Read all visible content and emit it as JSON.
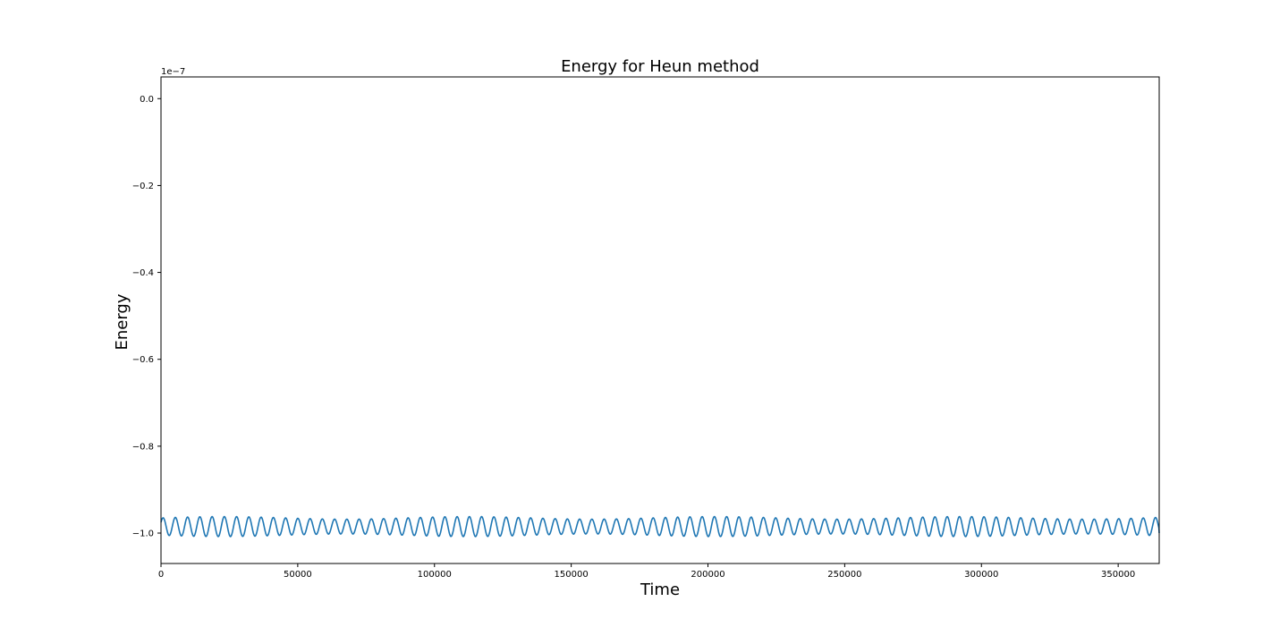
{
  "chart_data": {
    "type": "line",
    "title": "Energy for Heun method",
    "xlabel": "Time",
    "ylabel": "Energy",
    "y_offset_text": "1e−7",
    "y_scale_factor": 1e-07,
    "xlim": [
      0,
      365000
    ],
    "ylim": [
      -1.07e-07,
      5e-09
    ],
    "x_ticks": [
      0,
      50000,
      100000,
      150000,
      200000,
      250000,
      300000,
      350000
    ],
    "x_tick_labels": [
      "0",
      "50000",
      "100000",
      "150000",
      "200000",
      "250000",
      "300000",
      "350000"
    ],
    "y_ticks": [
      0.0,
      -2e-08,
      -4e-08,
      -6e-08,
      -8e-08,
      -1e-07
    ],
    "y_tick_labels": [
      "0.0",
      "−0.2",
      "−0.4",
      "−0.6",
      "−0.8",
      "−1.0"
    ],
    "grid": false,
    "series": [
      {
        "color": "#1f77b4",
        "description_of_shape": "oscillation around -0.985e-7 with period ~4480 time units, amplitude ~0.02e-7",
        "baseline": -9.85e-08,
        "amplitude": 2e-09,
        "period": 4480,
        "x_start": 0,
        "x_end": 365000,
        "y_start": -9.75e-08,
        "y_end": -1e-07
      }
    ]
  }
}
